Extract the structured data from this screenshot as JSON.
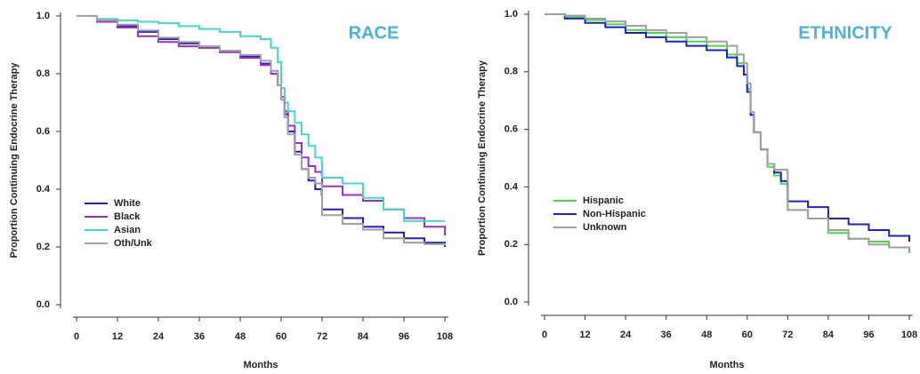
{
  "chart_data": [
    {
      "type": "line",
      "title": "RACE",
      "x_label": "Months",
      "y_label": "Proportion Continuing Endocrine Therapy",
      "x": [
        0,
        6,
        12,
        18,
        24,
        30,
        36,
        42,
        48,
        54,
        57,
        59,
        60,
        61,
        62,
        64,
        66,
        68,
        70,
        71.9,
        72,
        78,
        84,
        90,
        96,
        102,
        108
      ],
      "xlim": [
        0,
        108
      ],
      "xticks": [
        0,
        12,
        24,
        36,
        48,
        60,
        72,
        84,
        96,
        108
      ],
      "ylim": [
        0,
        1
      ],
      "yticks": [
        {
          "value": 0,
          "label": "0.0"
        },
        0.2,
        0.4,
        0.6,
        0.8,
        {
          "value": 1,
          "label": "1.0"
        }
      ],
      "series": [
        {
          "name": "White",
          "color": "#1f1fc8",
          "values": [
            1,
            0.985,
            0.965,
            0.945,
            0.92,
            0.905,
            0.89,
            0.875,
            0.86,
            0.835,
            0.8,
            0.76,
            0.72,
            0.66,
            0.6,
            0.53,
            0.47,
            0.43,
            0.4,
            0.38,
            0.33,
            0.3,
            0.27,
            0.25,
            0.23,
            0.215,
            0.2
          ]
        },
        {
          "name": "Black",
          "color": "#9a2fc8",
          "values": [
            1,
            0.98,
            0.96,
            0.93,
            0.91,
            0.895,
            0.89,
            0.875,
            0.855,
            0.83,
            0.8,
            0.76,
            0.72,
            0.67,
            0.62,
            0.56,
            0.51,
            0.48,
            0.46,
            0.45,
            0.41,
            0.38,
            0.36,
            0.33,
            0.3,
            0.27,
            0.24
          ]
        },
        {
          "name": "Asian",
          "color": "#40d8c8",
          "values": [
            1,
            0.99,
            0.985,
            0.98,
            0.975,
            0.965,
            0.955,
            0.945,
            0.93,
            0.92,
            0.89,
            0.84,
            0.75,
            0.7,
            0.67,
            0.63,
            0.59,
            0.55,
            0.51,
            0.49,
            0.44,
            0.42,
            0.37,
            0.33,
            0.29,
            0.29,
            0.29
          ]
        },
        {
          "name": "Oth/Unk",
          "color": "#a0a0a0",
          "values": [
            1,
            0.985,
            0.97,
            0.95,
            0.925,
            0.91,
            0.895,
            0.88,
            0.865,
            0.845,
            0.81,
            0.76,
            0.71,
            0.65,
            0.59,
            0.52,
            0.47,
            0.44,
            0.42,
            0.41,
            0.31,
            0.28,
            0.26,
            0.23,
            0.215,
            0.21,
            0.205
          ]
        }
      ]
    },
    {
      "type": "line",
      "title": "ETHNICITY",
      "x_label": "Months",
      "y_label": "Proportion Continuing Endocrine Therapy",
      "x": [
        0,
        6,
        12,
        18,
        24,
        30,
        36,
        42,
        48,
        54,
        57,
        59,
        60,
        61,
        62,
        64,
        66,
        68,
        70,
        71.9,
        72,
        78,
        84,
        90,
        96,
        102,
        108
      ],
      "xlim": [
        0,
        108
      ],
      "xticks": [
        0,
        12,
        24,
        36,
        48,
        60,
        72,
        84,
        96,
        108
      ],
      "ylim": [
        0,
        1
      ],
      "yticks": [
        {
          "value": 0,
          "label": "0.0"
        },
        0.2,
        0.4,
        0.6,
        0.8,
        {
          "value": 1,
          "label": "1.0"
        }
      ],
      "series": [
        {
          "name": "Hispanic",
          "color": "#40e040",
          "values": [
            1,
            0.99,
            0.98,
            0.965,
            0.945,
            0.935,
            0.92,
            0.905,
            0.89,
            0.86,
            0.83,
            0.79,
            0.74,
            0.65,
            0.59,
            0.53,
            0.47,
            0.44,
            0.41,
            0.4,
            0.32,
            0.29,
            0.24,
            0.22,
            0.21,
            0.19,
            0.17
          ]
        },
        {
          "name": "Non-Hispanic",
          "color": "#1f1fc8",
          "values": [
            1,
            0.985,
            0.97,
            0.955,
            0.935,
            0.92,
            0.905,
            0.89,
            0.875,
            0.85,
            0.82,
            0.79,
            0.73,
            0.65,
            0.59,
            0.53,
            0.48,
            0.45,
            0.42,
            0.41,
            0.35,
            0.33,
            0.29,
            0.27,
            0.25,
            0.23,
            0.21
          ]
        },
        {
          "name": "Unknown",
          "color": "#a0a0a0",
          "values": [
            1,
            0.995,
            0.985,
            0.975,
            0.96,
            0.945,
            0.935,
            0.92,
            0.905,
            0.89,
            0.86,
            0.83,
            0.76,
            0.66,
            0.59,
            0.53,
            0.48,
            0.46,
            0.46,
            0.45,
            0.32,
            0.29,
            0.25,
            0.22,
            0.2,
            0.19,
            0.18
          ]
        }
      ]
    }
  ]
}
